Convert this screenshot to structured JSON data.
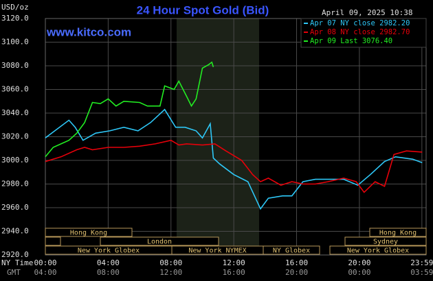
{
  "chart_data": {
    "type": "line",
    "title": "24 Hour Spot Gold (Bid)",
    "unit_label": "USD/oz",
    "website": "www.kitco.com",
    "timestamp": "April 09, 2025 10:38",
    "x_axis_label": "NY Time",
    "x2_axis_label": "GMT",
    "xlim": [
      0,
      24.25
    ],
    "xticks": [
      {
        "value": 0,
        "label": "00:00"
      },
      {
        "value": 4,
        "label": "04:00"
      },
      {
        "value": 8,
        "label": "08:00"
      },
      {
        "value": 12,
        "label": "12:00"
      },
      {
        "value": 16,
        "label": "16:00"
      },
      {
        "value": 20,
        "label": "20:00"
      },
      {
        "value": 23.98,
        "label": "23:59"
      }
    ],
    "gmt_labels": [
      "04:00",
      "08:00",
      "12:00",
      "16:00",
      "20:00",
      "00:00",
      "03:59"
    ],
    "ylim": [
      2920,
      3120
    ],
    "yticks": [
      {
        "value": 2920,
        "label": "2920.0"
      },
      {
        "value": 2940,
        "label": "2940.0"
      },
      {
        "value": 2960,
        "label": "2960.0"
      },
      {
        "value": 2980,
        "label": "2980.0"
      },
      {
        "value": 3000,
        "label": "3000.0"
      },
      {
        "value": 3020,
        "label": "3020.0"
      },
      {
        "value": 3040,
        "label": "3040.0"
      },
      {
        "value": 3060,
        "label": "3060.0"
      },
      {
        "value": 3080,
        "label": "3080.0"
      },
      {
        "value": 3100,
        "label": "3100.0"
      },
      {
        "value": 3120,
        "label": "3120.0"
      }
    ],
    "grid": true,
    "legend": "top-right",
    "sessions": [
      "Hong Kong",
      "London",
      "New York Globex",
      "New York NYMEX",
      "NY Globex",
      "Hong Kong",
      "Sydney",
      "New York Globex"
    ],
    "series": [
      {
        "name": "Apr 07 NY close 2982.20",
        "color": "#2ec8f8",
        "x": [
          0,
          0.6,
          1.5,
          1.9,
          2.4,
          3.2,
          4.1,
          5.0,
          5.9,
          6.7,
          7.6,
          8.3,
          8.9,
          9.6,
          10.0,
          10.5,
          10.7,
          11.1,
          12.0,
          12.9,
          13.7,
          14.2,
          15.1,
          15.7,
          16.4,
          17.2,
          18.1,
          19.0,
          19.9,
          20.7,
          21.6,
          22.3,
          23.4,
          24.0
        ],
        "values": [
          3019,
          3025,
          3034,
          3028,
          3017,
          3023,
          3025,
          3028,
          3025,
          3032,
          3043,
          3028,
          3028,
          3025,
          3019,
          3031,
          3002,
          2997,
          2988,
          2982,
          2959,
          2968,
          2970,
          2970,
          2982,
          2984,
          2984,
          2984,
          2979,
          2988,
          2999,
          3003,
          3001,
          2998
        ]
      },
      {
        "name": "Apr 08 NY close 2982.70",
        "color": "#e8000a",
        "x": [
          0,
          1,
          2,
          2.5,
          3,
          4,
          5,
          6,
          7,
          8,
          8.5,
          9,
          10,
          10.8,
          11.5,
          12.5,
          13.2,
          13.7,
          14.2,
          15,
          15.7,
          16.4,
          17.2,
          18,
          19,
          19.8,
          20.3,
          21,
          21.6,
          22.2,
          23,
          24
        ],
        "values": [
          2999,
          3003,
          3009,
          3011,
          3009,
          3011,
          3011,
          3012,
          3014,
          3017,
          3013,
          3014,
          3013,
          3014,
          3008,
          3000,
          2988,
          2982,
          2985,
          2979,
          2982,
          2980,
          2980,
          2982,
          2985,
          2982,
          2973,
          2982,
          2978,
          3005,
          3008,
          3007
        ]
      },
      {
        "name": "Apr 09 Last 3076.40",
        "color": "#22ee22",
        "x": [
          0,
          0.5,
          1,
          1.5,
          2,
          2.5,
          3,
          3.5,
          4,
          4.5,
          5,
          6,
          6.5,
          7.3,
          7.6,
          8.2,
          8.5,
          9.0,
          9.3,
          9.6,
          10.0,
          10.4,
          10.6,
          10.7
        ],
        "values": [
          3003,
          3011,
          3014,
          3017,
          3023,
          3032,
          3049,
          3048,
          3052,
          3046,
          3050,
          3049,
          3046,
          3046,
          3063,
          3060,
          3067,
          3054,
          3046,
          3052,
          3078,
          3081,
          3083,
          3079
        ]
      }
    ]
  }
}
